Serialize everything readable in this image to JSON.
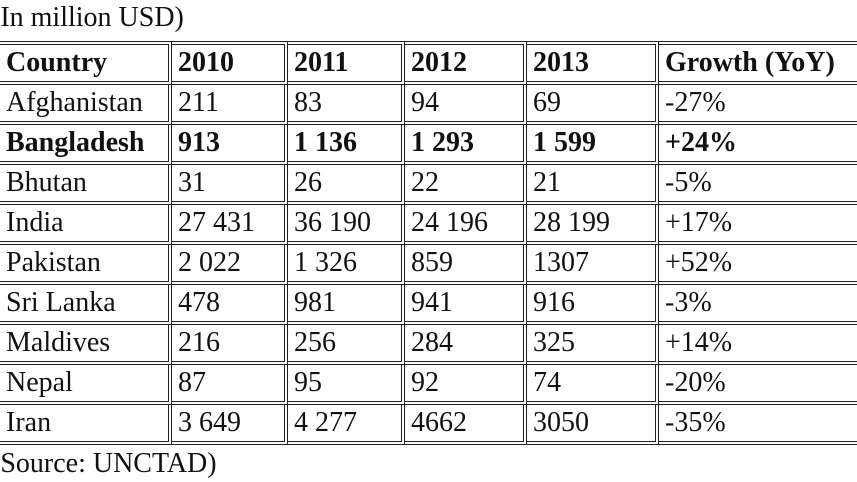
{
  "note": "(In million USD)",
  "table": {
    "columns": [
      "Country",
      "2010",
      "2011",
      "2012",
      "2013",
      "Growth (YoY)"
    ],
    "rows": [
      [
        "Afghanistan",
        "211",
        "83",
        "94",
        "69",
        "-27%"
      ],
      [
        "Bangladesh",
        "913",
        "1 136",
        "1 293",
        "1 599",
        "+24%"
      ],
      [
        "Bhutan",
        "31",
        "26",
        "22",
        "21",
        "-5%"
      ],
      [
        "India",
        "27 431",
        "36 190",
        "24 196",
        "28 199",
        "+17%"
      ],
      [
        "Pakistan",
        "2 022",
        "1 326",
        "859",
        "1307",
        "+52%"
      ],
      [
        "Sri Lanka",
        "478",
        "981",
        "941",
        "916",
        "-3%"
      ],
      [
        "Maldives",
        "216",
        "256",
        "284",
        "325",
        "+14%"
      ],
      [
        "Nepal",
        "87",
        "95",
        "92",
        "74",
        "-20%"
      ],
      [
        "Iran",
        "3 649",
        "4 277",
        "4662",
        "3050",
        "-35%"
      ]
    ],
    "bold_rows": [
      1
    ]
  },
  "source": "(Source: UNCTAD)"
}
